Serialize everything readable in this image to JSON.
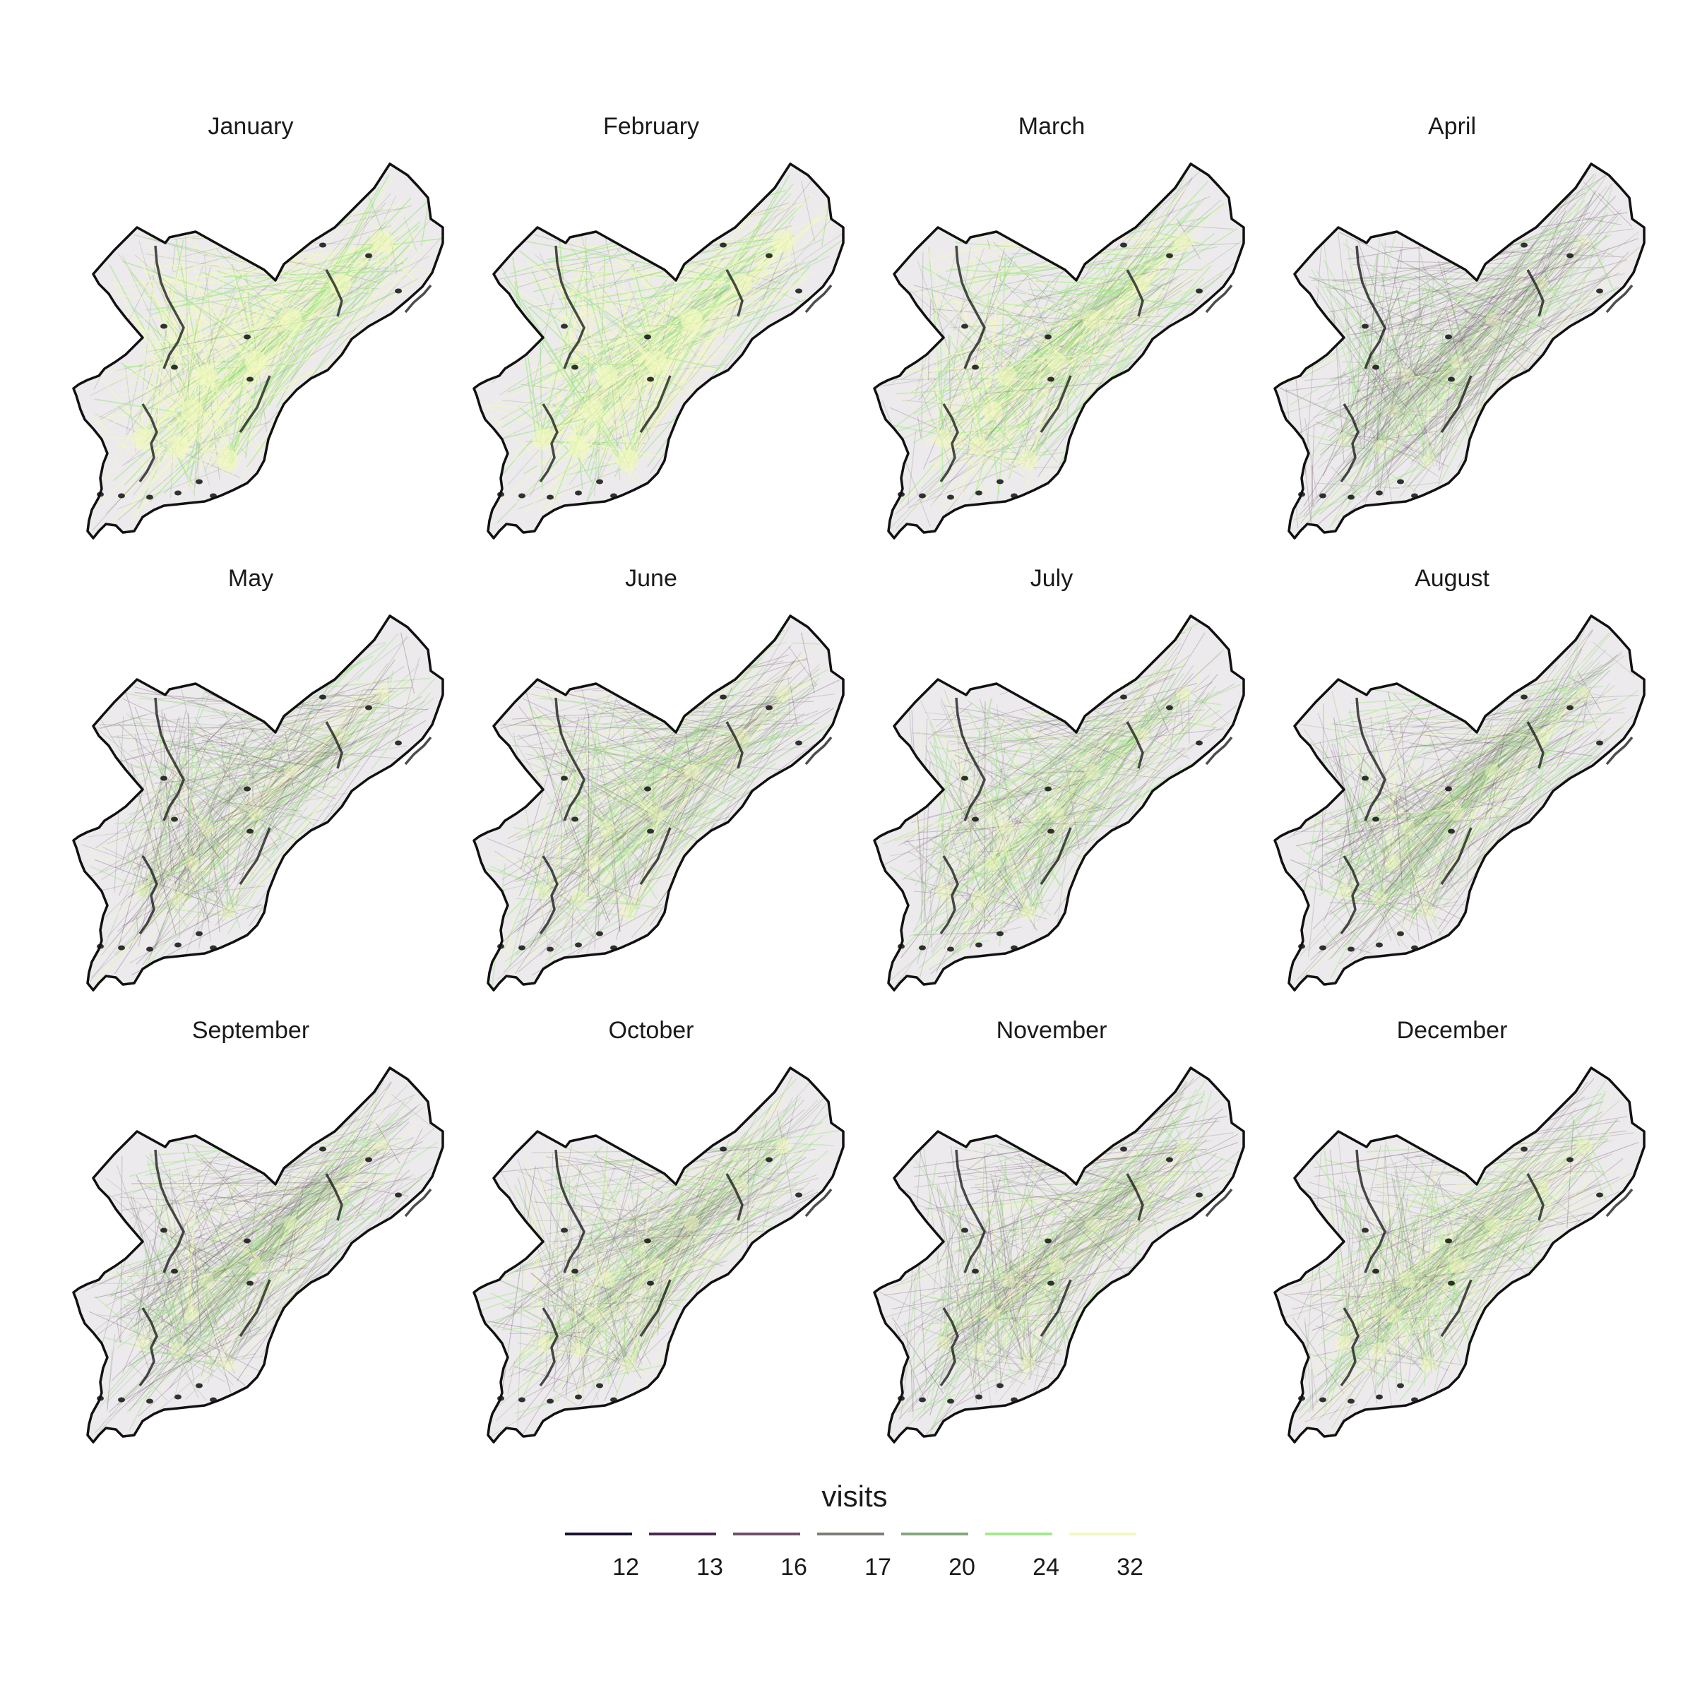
{
  "chart_data": {
    "type": "map",
    "panels": [
      {
        "title": "January",
        "intensity": 0.95
      },
      {
        "title": "February",
        "intensity": 0.95
      },
      {
        "title": "March",
        "intensity": 0.75
      },
      {
        "title": "April",
        "intensity": 0.35
      },
      {
        "title": "May",
        "intensity": 0.4
      },
      {
        "title": "June",
        "intensity": 0.5
      },
      {
        "title": "July",
        "intensity": 0.5
      },
      {
        "title": "August",
        "intensity": 0.45
      },
      {
        "title": "September",
        "intensity": 0.45
      },
      {
        "title": "October",
        "intensity": 0.5
      },
      {
        "title": "November",
        "intensity": 0.45
      },
      {
        "title": "December",
        "intensity": 0.55
      }
    ],
    "legend": {
      "title": "visits",
      "breaks": [
        12,
        13,
        16,
        17,
        20,
        24,
        32
      ],
      "colors": [
        "#1b1030",
        "#4a2a4e",
        "#6e5068",
        "#7d7d78",
        "#86a67a",
        "#a4e88c",
        "#f2f8c0"
      ]
    },
    "boundary_color": "#111111"
  }
}
